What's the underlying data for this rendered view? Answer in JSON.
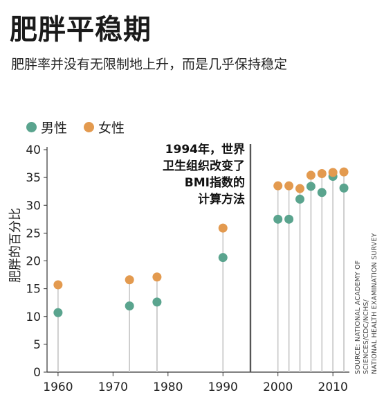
{
  "header": {
    "title": "肥胖平稳期",
    "subtitle": "肥胖率并没有无限制地上升，而是几乎保持稳定"
  },
  "colors": {
    "male": "#5aa48e",
    "female": "#e39a4f",
    "stem": "#c9c9c9",
    "divider": "#555555"
  },
  "chart_data": {
    "type": "scatter",
    "ylabel": "肥胖的百分比",
    "xlim": [
      1958,
      2013
    ],
    "ylim": [
      0,
      40
    ],
    "x_ticks": [
      1960,
      1970,
      1980,
      1990,
      2000,
      2010
    ],
    "y_ticks": [
      0,
      5,
      10,
      15,
      20,
      25,
      30,
      35,
      40
    ],
    "legend": {
      "placement": "top-left"
    },
    "series": [
      {
        "name": "男性",
        "color_key": "male",
        "x": [
          1960,
          1973,
          1978,
          1990,
          2000,
          2002,
          2004,
          2006,
          2008,
          2010,
          2012
        ],
        "y": [
          10.7,
          11.9,
          12.6,
          20.6,
          27.5,
          27.5,
          31.1,
          33.4,
          32.3,
          35.2,
          33.1
        ]
      },
      {
        "name": "女性",
        "color_key": "female",
        "x": [
          1960,
          1973,
          1978,
          1990,
          2000,
          2002,
          2004,
          2006,
          2008,
          2010,
          2012
        ],
        "y": [
          15.7,
          16.6,
          17.1,
          25.9,
          33.5,
          33.5,
          33.0,
          35.4,
          35.7,
          35.9,
          36.0
        ]
      }
    ],
    "divider_year": 1995,
    "annotation": {
      "lines": [
        "1994年，世界",
        "卫生组织改变了",
        "BMI指数的",
        "计算方法"
      ]
    },
    "source": {
      "lines": [
        "SOURCE: NATIONAL ACADEMY OF SCIENCES/CDC/NCHS/",
        "NATIONAL HEALTH EXAMINATION SURVEY"
      ]
    }
  }
}
